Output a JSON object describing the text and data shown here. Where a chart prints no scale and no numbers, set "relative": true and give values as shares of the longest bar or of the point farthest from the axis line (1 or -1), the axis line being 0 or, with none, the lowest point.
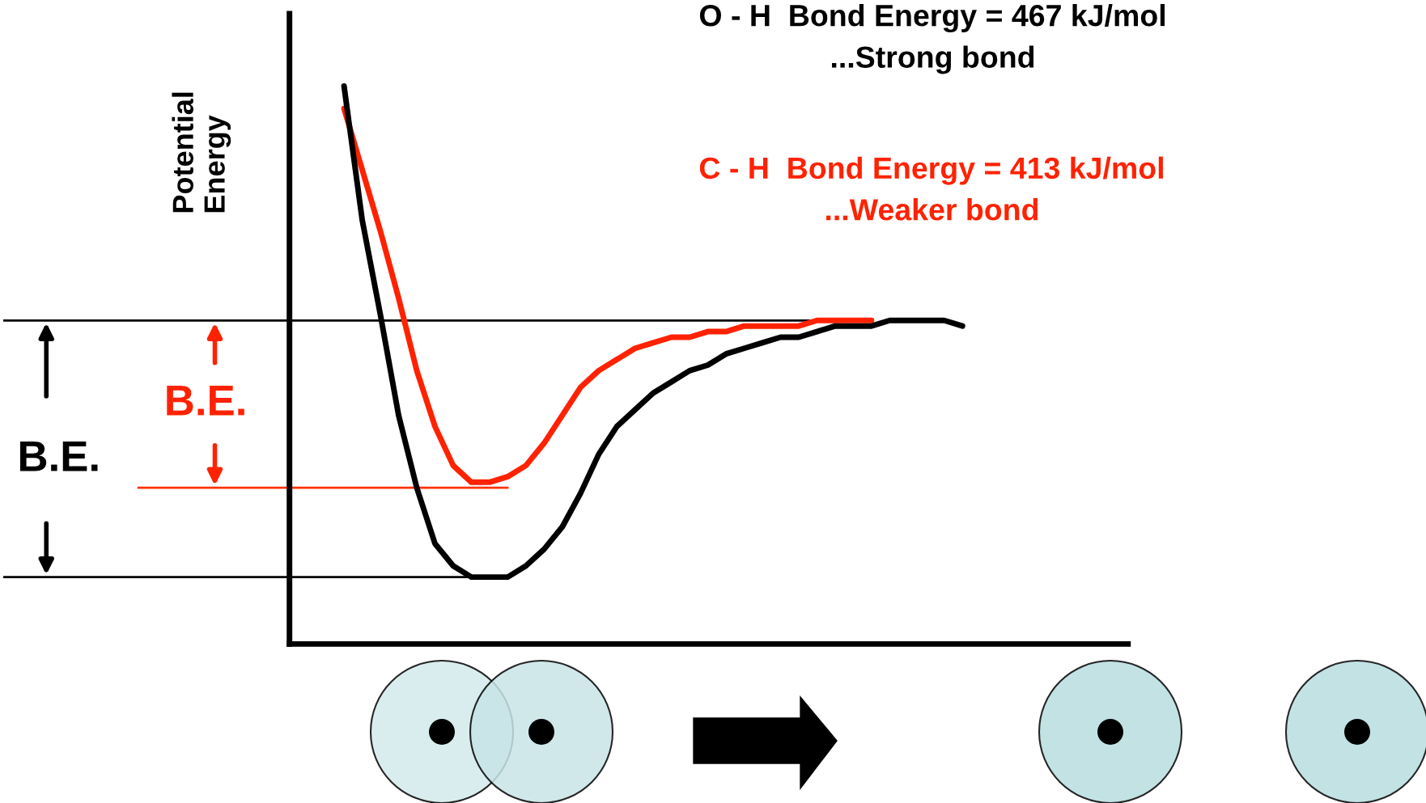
{
  "chart_data": {
    "type": "line",
    "relative": true,
    "ylabel": "Potential\nEnergy",
    "categories": [
      null,
      null,
      null,
      null,
      null,
      null,
      null,
      null,
      null,
      null,
      null,
      null,
      null,
      null,
      null,
      null,
      null,
      null,
      null,
      null,
      null,
      null,
      null,
      null,
      null,
      null,
      null,
      null,
      null,
      null,
      null,
      null,
      null,
      null,
      null,
      null,
      null,
      null,
      null,
      null,
      null,
      null,
      null,
      null,
      null,
      null,
      null
    ],
    "series": [
      {
        "name": "O - H  Bond Energy = 467 kJ/mol\n...Strong bond",
        "color": "#000000",
        "values": [
          null,
          null,
          null,
          1.0,
          0.76,
          0.59,
          0.41,
          0.28,
          0.18,
          0.14,
          0.12,
          0.12,
          0.12,
          0.14,
          0.17,
          0.21,
          0.27,
          0.34,
          0.39,
          0.42,
          0.45,
          0.47,
          0.49,
          0.5,
          0.52,
          0.53,
          0.54,
          0.55,
          0.55,
          0.56,
          0.57,
          0.57,
          0.57,
          0.58,
          0.58,
          0.58,
          0.58,
          0.57,
          null,
          null,
          null,
          null,
          null,
          null,
          null,
          null,
          null
        ]
      },
      {
        "name": "C - H  Bond Energy = 413 kJ/mol\n...Weaker bond",
        "color": "#ff2200",
        "values": [
          null,
          null,
          null,
          0.96,
          0.85,
          0.74,
          0.62,
          0.49,
          0.39,
          0.32,
          0.29,
          0.29,
          0.3,
          0.32,
          0.36,
          0.41,
          0.46,
          0.49,
          0.51,
          0.53,
          0.54,
          0.55,
          0.55,
          0.56,
          0.56,
          0.57,
          0.57,
          0.57,
          0.57,
          0.58,
          0.58,
          0.58,
          0.58,
          null,
          null,
          null,
          null,
          null,
          null,
          null,
          null,
          null,
          null,
          null,
          null,
          null,
          null
        ]
      }
    ],
    "ref_lines": [
      {
        "axis": "y",
        "value": 0.58,
        "color": "#000000"
      },
      {
        "axis": "y",
        "value": 0.12,
        "color": "#000000"
      },
      {
        "axis": "y",
        "value": 0.28,
        "color": "#ff3300"
      }
    ],
    "annotations": [
      "B.E.",
      "B.E."
    ],
    "legend": false,
    "grid": false,
    "marker": "none",
    "line_style": "solid"
  }
}
